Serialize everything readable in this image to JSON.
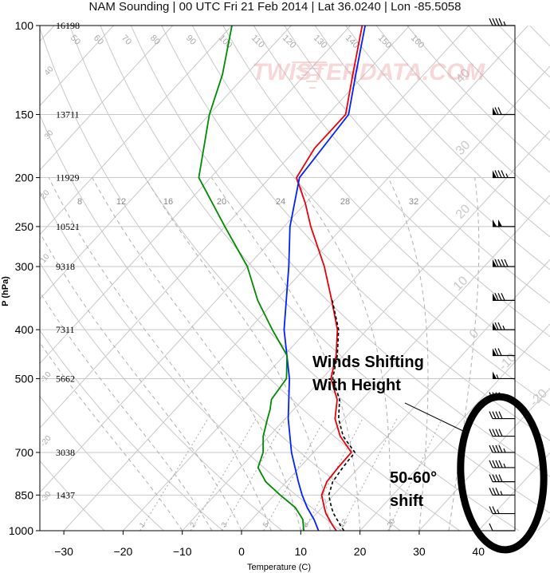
{
  "title": "NAM Sounding | 00 UTC Fri 21 Feb 2014 | Lat 36.0240 | Lon -85.5058",
  "watermark": "TWISTERDATA.COM",
  "chart_data": {
    "type": "line",
    "title": "NAM Sounding | 00 UTC Fri 21 Feb 2014 | Lat 36.0240 | Lon -85.5058",
    "xlabel": "Temperature (C)",
    "ylabel": "P (hPa)",
    "xlim": [
      -34,
      44
    ],
    "ylim": [
      1000,
      100
    ],
    "y_scale": "log",
    "grid": true,
    "x_ticks": [
      -30,
      -20,
      -10,
      0,
      10,
      20,
      30,
      40
    ],
    "y_ticks": [
      1000,
      850,
      700,
      500,
      400,
      300,
      250,
      200,
      150,
      100
    ],
    "heights": [
      {
        "p": 100,
        "label": "16198"
      },
      {
        "p": 150,
        "label": "13711"
      },
      {
        "p": 200,
        "label": "11929"
      },
      {
        "p": 250,
        "label": "10521"
      },
      {
        "p": 300,
        "label": "9318"
      },
      {
        "p": 400,
        "label": "7311"
      },
      {
        "p": 500,
        "label": "5662"
      },
      {
        "p": 700,
        "label": "3038"
      },
      {
        "p": 850,
        "label": "1437"
      }
    ],
    "isotherm_labels": [
      "50",
      "60",
      "70",
      "80",
      "90",
      "100",
      "110",
      "120",
      "130",
      "140",
      "150",
      "160"
    ],
    "mixing_ratio_labels": [
      "8",
      "12",
      "16",
      "20",
      "24",
      "28",
      "32"
    ],
    "mixing_ratio_lower_labels": [
      "1",
      "2",
      "3",
      "5",
      "8",
      "12",
      "20"
    ],
    "adiabat_labels": [
      "40",
      "30",
      "20",
      "10",
      "0",
      "-10",
      "-20",
      "-30"
    ],
    "series": [
      {
        "name": "Temperature",
        "color": "#e8000b",
        "points": [
          [
            1000,
            16.0
          ],
          [
            975,
            14.5
          ],
          [
            925,
            11.6
          ],
          [
            900,
            10.4
          ],
          [
            850,
            8.0
          ],
          [
            800,
            6.8
          ],
          [
            750,
            6.5
          ],
          [
            700,
            6.4
          ],
          [
            650,
            2.0
          ],
          [
            600,
            -1.6
          ],
          [
            550,
            -4.2
          ],
          [
            500,
            -8.5
          ],
          [
            450,
            -11.2
          ],
          [
            400,
            -15.0
          ],
          [
            350,
            -20.5
          ],
          [
            300,
            -27.0
          ],
          [
            250,
            -35.5
          ],
          [
            225,
            -40.0
          ],
          [
            200,
            -45.5
          ],
          [
            175,
            -47.0
          ],
          [
            150,
            -47.0
          ],
          [
            125,
            -52.0
          ],
          [
            100,
            -58.0
          ]
        ]
      },
      {
        "name": "Virtual temperature",
        "color": "#000000",
        "dashed": true,
        "points": [
          [
            1000,
            17.3
          ],
          [
            975,
            15.8
          ],
          [
            925,
            12.9
          ],
          [
            900,
            11.6
          ],
          [
            850,
            9.2
          ],
          [
            800,
            7.8
          ],
          [
            750,
            7.3
          ],
          [
            700,
            7.0
          ],
          [
            650,
            2.5
          ],
          [
            600,
            -1.0
          ],
          [
            550,
            -3.8
          ],
          [
            500,
            -8.2
          ],
          [
            450,
            -11.0
          ],
          [
            400,
            -14.8
          ],
          [
            350,
            -20.4
          ]
        ]
      },
      {
        "name": "Parcel",
        "color": "#0020ff",
        "points": [
          [
            1000,
            13.0
          ],
          [
            950,
            10.5
          ],
          [
            900,
            7.5
          ],
          [
            850,
            4.7
          ],
          [
            800,
            2.0
          ],
          [
            700,
            -3.7
          ],
          [
            600,
            -9.5
          ],
          [
            500,
            -15.5
          ],
          [
            400,
            -24.0
          ],
          [
            300,
            -33.0
          ],
          [
            250,
            -39.0
          ],
          [
            200,
            -45.0
          ],
          [
            150,
            -46.5
          ],
          [
            125,
            -51.5
          ],
          [
            100,
            -57.5
          ]
        ]
      },
      {
        "name": "Dewpoint",
        "color": "#008a00",
        "points": [
          [
            1000,
            10.5
          ],
          [
            950,
            8.6
          ],
          [
            900,
            5.5
          ],
          [
            850,
            1.0
          ],
          [
            800,
            -3.5
          ],
          [
            750,
            -7.0
          ],
          [
            700,
            -8.5
          ],
          [
            650,
            -11.0
          ],
          [
            600,
            -13.0
          ],
          [
            575,
            -14.0
          ],
          [
            550,
            -15.3
          ],
          [
            500,
            -16.0
          ],
          [
            450,
            -19.5
          ],
          [
            400,
            -26.0
          ],
          [
            350,
            -33.0
          ],
          [
            300,
            -40.0
          ],
          [
            250,
            -50.0
          ],
          [
            200,
            -62.0
          ],
          [
            150,
            -70.0
          ],
          [
            125,
            -74.0
          ],
          [
            100,
            -80.0
          ]
        ]
      }
    ],
    "wind_barbs": [
      {
        "p": 1000,
        "knots": 10
      },
      {
        "p": 925,
        "knots": 25
      },
      {
        "p": 850,
        "knots": 35
      },
      {
        "p": 800,
        "knots": 40
      },
      {
        "p": 750,
        "knots": 45
      },
      {
        "p": 700,
        "knots": 45
      },
      {
        "p": 650,
        "knots": 40
      },
      {
        "p": 600,
        "knots": 40
      },
      {
        "p": 550,
        "knots": 45
      },
      {
        "p": 500,
        "knots": 55
      },
      {
        "p": 450,
        "knots": 70
      },
      {
        "p": 400,
        "knots": 75
      },
      {
        "p": 350,
        "knots": 80
      },
      {
        "p": 300,
        "knots": 90
      },
      {
        "p": 250,
        "knots": 100
      },
      {
        "p": 200,
        "knots": 85
      },
      {
        "p": 150,
        "knots": 70
      },
      {
        "p": 100,
        "knots": 45
      }
    ]
  },
  "annotations": {
    "winds_line1": "Winds Shifting",
    "winds_line2": "With Height",
    "shift_line1": "50-60°",
    "shift_line2": "shift"
  },
  "colors": {
    "grid": "#c8c8c8",
    "temperature": "#e8000b",
    "dewpoint": "#008a00",
    "parcel": "#0020ff",
    "annotation": "#000000"
  }
}
